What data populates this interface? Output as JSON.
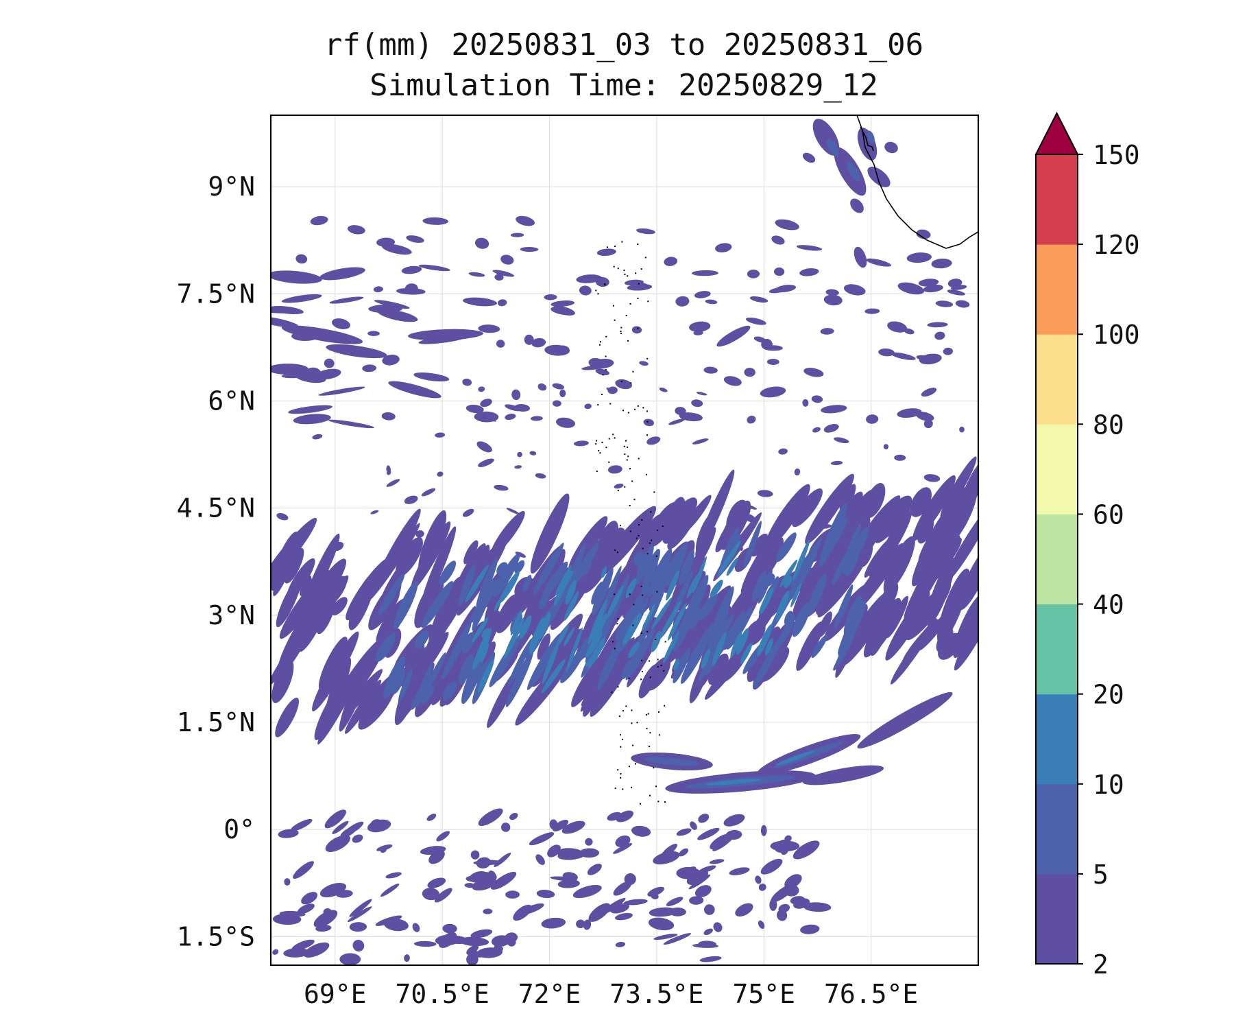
{
  "title": {
    "line1": "rf(mm) 20250831_03 to 20250831_06",
    "line2": "Simulation Time: 20250829_12"
  },
  "map": {
    "lon_range": [
      68.1,
      78.0
    ],
    "lat_range": [
      -1.9,
      10.0
    ],
    "gridlines": true,
    "lon_ticks": [
      {
        "value": 69,
        "label": "69°E"
      },
      {
        "value": 70.5,
        "label": "70.5°E"
      },
      {
        "value": 72,
        "label": "72°E"
      },
      {
        "value": 73.5,
        "label": "73.5°E"
      },
      {
        "value": 75,
        "label": "75°E"
      },
      {
        "value": 76.5,
        "label": "76.5°E"
      }
    ],
    "lat_ticks": [
      {
        "value": 9,
        "label": "9°N"
      },
      {
        "value": 7.5,
        "label": "7.5°N"
      },
      {
        "value": 6,
        "label": "6°N"
      },
      {
        "value": 4.5,
        "label": "4.5°N"
      },
      {
        "value": 3,
        "label": "3°N"
      },
      {
        "value": 1.5,
        "label": "1.5°N"
      },
      {
        "value": 0,
        "label": "0°"
      },
      {
        "value": -1.5,
        "label": "1.5°S"
      }
    ],
    "regions": [
      "Maldives atolls",
      "Sri Lanka / India southern tip coastline (top-right)"
    ]
  },
  "colorbar": {
    "levels": [
      "2",
      "5",
      "10",
      "20",
      "40",
      "60",
      "80",
      "100",
      "120",
      "150"
    ],
    "colors": [
      "#5e4fa2",
      "#4d62ad",
      "#3a7eb8",
      "#66c2a5",
      "#bde4a0",
      "#f2f9ad",
      "#fde08b",
      "#f99c59",
      "#d53e4f"
    ],
    "extend_color": "#9e0142",
    "extend": "max"
  }
}
